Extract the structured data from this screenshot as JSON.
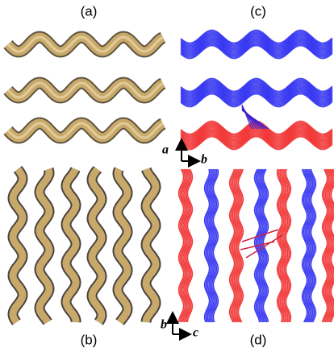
{
  "panels": [
    {
      "label": "(a)"
    },
    {
      "label": "(b)"
    },
    {
      "label": "(c)"
    },
    {
      "label": "(d)"
    }
  ],
  "axes": [
    {
      "vertical": "a",
      "horizontal": "b"
    },
    {
      "vertical": "b",
      "horizontal": "c"
    }
  ]
}
